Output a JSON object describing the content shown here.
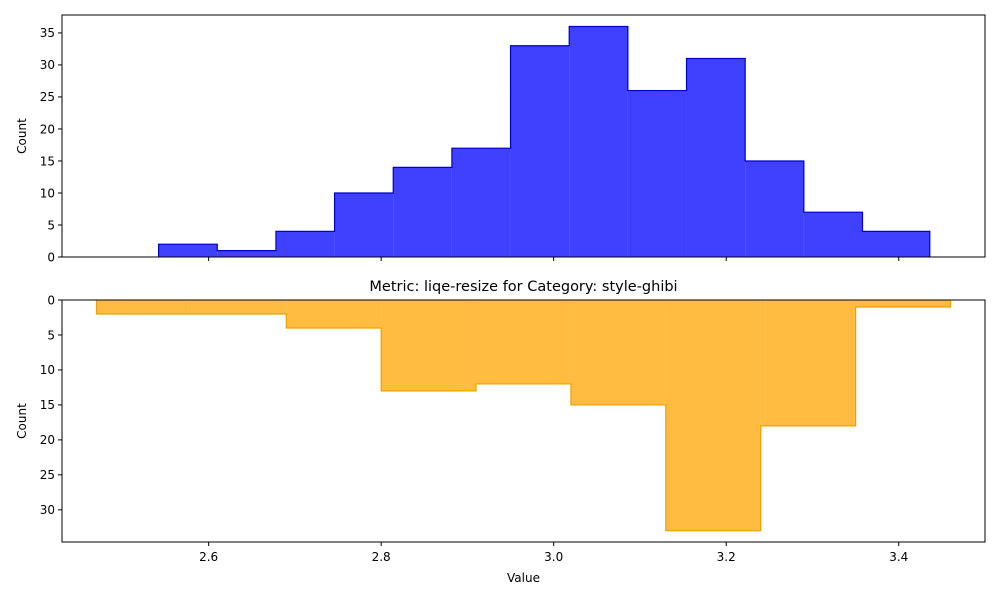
{
  "chart_data": [
    {
      "type": "histogram",
      "orientation": "up",
      "title": "",
      "xlabel": "",
      "ylabel": "Count",
      "xlim": [
        2.43,
        3.5
      ],
      "ylim": [
        0,
        37.8
      ],
      "xticks": [
        2.6,
        2.8,
        3.0,
        3.2,
        3.4
      ],
      "xtick_labels_visible": false,
      "yticks": [
        0,
        5,
        10,
        15,
        20,
        25,
        30,
        35
      ],
      "bin_edges": [
        2.542,
        2.61,
        2.678,
        2.746,
        2.814,
        2.882,
        2.95,
        3.018,
        3.086,
        3.154,
        3.222,
        3.29,
        3.358,
        3.436
      ],
      "counts": [
        2,
        1,
        4,
        10,
        14,
        17,
        33,
        36,
        26,
        31,
        15,
        7,
        4
      ],
      "fill_color": "#0000ff",
      "fill_opacity": 0.75,
      "edge_color": "#0000cc"
    },
    {
      "type": "histogram",
      "orientation": "down",
      "title": "Metric: liqe-resize for Category: style-ghibi",
      "xlabel": "Value",
      "ylabel": "Count",
      "xlim": [
        2.43,
        3.5
      ],
      "ylim": [
        0,
        34.6
      ],
      "xticks": [
        2.6,
        2.8,
        3.0,
        3.2,
        3.4
      ],
      "xtick_labels_visible": true,
      "yticks": [
        0,
        5,
        10,
        15,
        20,
        25,
        30
      ],
      "bin_edges": [
        2.47,
        2.58,
        2.69,
        2.8,
        2.91,
        3.02,
        3.13,
        3.24,
        3.35,
        3.46
      ],
      "counts": [
        2,
        2,
        4,
        13,
        12,
        15,
        33,
        18,
        1
      ],
      "fill_color": "#ffa500",
      "fill_opacity": 0.75,
      "edge_color": "#f0a000"
    }
  ]
}
